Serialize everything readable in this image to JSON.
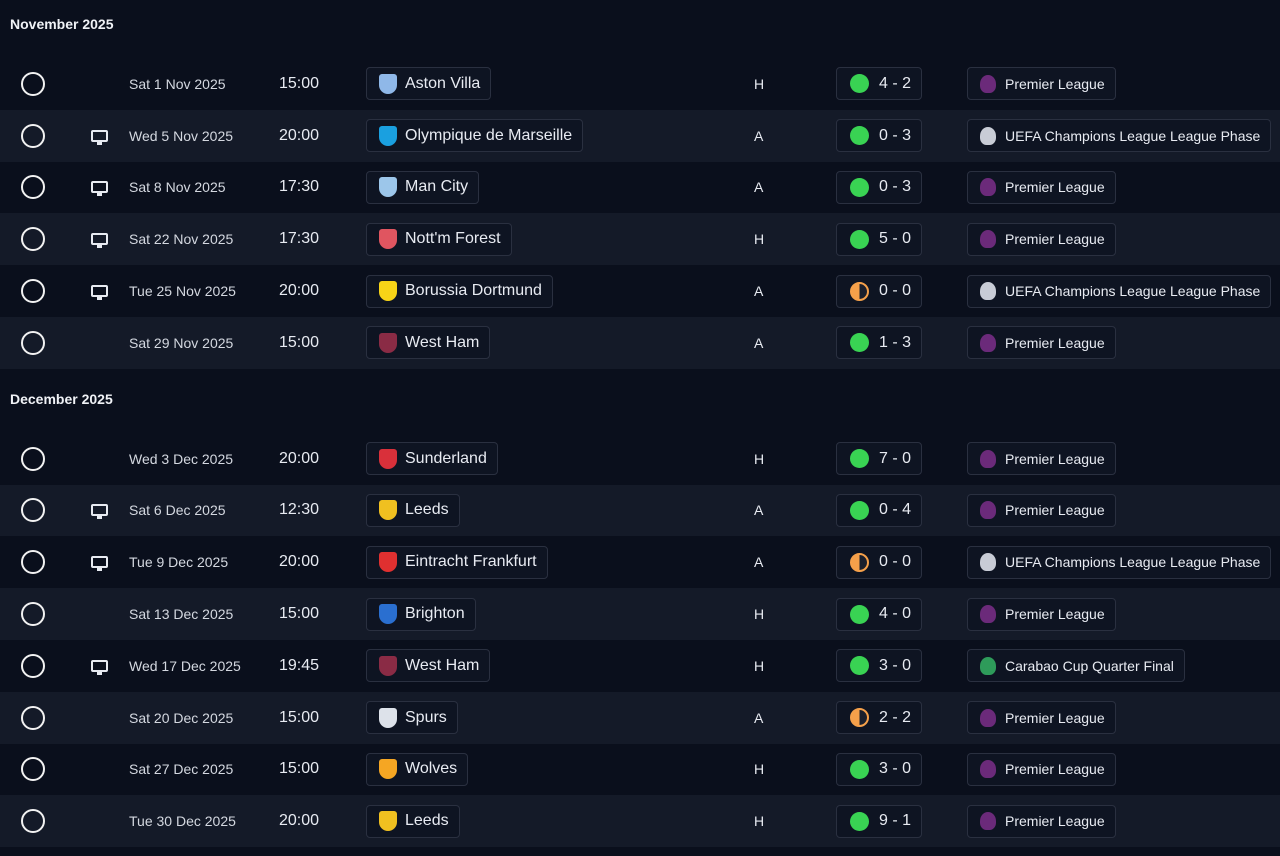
{
  "colors": {
    "win": "#39d353",
    "draw": "#f5a04a",
    "pl": "#6b2a7a",
    "ucl": "#c8ccd6",
    "cup": "#2e9b5a"
  },
  "months": [
    {
      "title": "November 2025",
      "fixtures": [
        {
          "date": "Sat 1 Nov 2025",
          "time": "15:00",
          "tv": false,
          "team": "Aston Villa",
          "crest": "#8fb8e8",
          "venue": "H",
          "result": "win",
          "score": "4 - 2",
          "comp": "Premier League",
          "ctype": "pl"
        },
        {
          "date": "Wed 5 Nov 2025",
          "time": "20:00",
          "tv": true,
          "team": "Olympique de Marseille",
          "crest": "#1aa0e0",
          "venue": "A",
          "result": "win",
          "score": "0 - 3",
          "comp": "UEFA Champions League League Phase",
          "ctype": "ucl"
        },
        {
          "date": "Sat 8 Nov 2025",
          "time": "17:30",
          "tv": true,
          "team": "Man City",
          "crest": "#9cc6ea",
          "venue": "A",
          "result": "win",
          "score": "0 - 3",
          "comp": "Premier League",
          "ctype": "pl"
        },
        {
          "date": "Sat 22 Nov 2025",
          "time": "17:30",
          "tv": true,
          "team": "Nott'm Forest",
          "crest": "#e05560",
          "venue": "H",
          "result": "win",
          "score": "5 - 0",
          "comp": "Premier League",
          "ctype": "pl"
        },
        {
          "date": "Tue 25 Nov 2025",
          "time": "20:00",
          "tv": true,
          "team": "Borussia Dortmund",
          "crest": "#f7d417",
          "venue": "A",
          "result": "draw",
          "score": "0 - 0",
          "comp": "UEFA Champions League League Phase",
          "ctype": "ucl"
        },
        {
          "date": "Sat 29 Nov 2025",
          "time": "15:00",
          "tv": false,
          "team": "West Ham",
          "crest": "#8a2b45",
          "venue": "A",
          "result": "win",
          "score": "1 - 3",
          "comp": "Premier League",
          "ctype": "pl"
        }
      ]
    },
    {
      "title": "December 2025",
      "fixtures": [
        {
          "date": "Wed 3 Dec 2025",
          "time": "20:00",
          "tv": false,
          "team": "Sunderland",
          "crest": "#d9303a",
          "venue": "H",
          "result": "win",
          "score": "7 - 0",
          "comp": "Premier League",
          "ctype": "pl"
        },
        {
          "date": "Sat 6 Dec 2025",
          "time": "12:30",
          "tv": true,
          "team": "Leeds",
          "crest": "#f0c020",
          "venue": "A",
          "result": "win",
          "score": "0 - 4",
          "comp": "Premier League",
          "ctype": "pl"
        },
        {
          "date": "Tue 9 Dec 2025",
          "time": "20:00",
          "tv": true,
          "team": "Eintracht Frankfurt",
          "crest": "#e03030",
          "venue": "A",
          "result": "draw",
          "score": "0 - 0",
          "comp": "UEFA Champions League League Phase",
          "ctype": "ucl"
        },
        {
          "date": "Sat 13 Dec 2025",
          "time": "15:00",
          "tv": false,
          "team": "Brighton",
          "crest": "#2a6fd0",
          "venue": "H",
          "result": "win",
          "score": "4 - 0",
          "comp": "Premier League",
          "ctype": "pl"
        },
        {
          "date": "Wed 17 Dec 2025",
          "time": "19:45",
          "tv": true,
          "team": "West Ham",
          "crest": "#8a2b45",
          "venue": "H",
          "result": "win",
          "score": "3 - 0",
          "comp": "Carabao Cup Quarter Final",
          "ctype": "cup"
        },
        {
          "date": "Sat 20 Dec 2025",
          "time": "15:00",
          "tv": false,
          "team": "Spurs",
          "crest": "#dde2ea",
          "venue": "A",
          "result": "draw",
          "score": "2 - 2",
          "comp": "Premier League",
          "ctype": "pl"
        },
        {
          "date": "Sat 27 Dec 2025",
          "time": "15:00",
          "tv": false,
          "team": "Wolves",
          "crest": "#f5a623",
          "venue": "H",
          "result": "win",
          "score": "3 - 0",
          "comp": "Premier League",
          "ctype": "pl"
        },
        {
          "date": "Tue 30 Dec 2025",
          "time": "20:00",
          "tv": false,
          "team": "Leeds",
          "crest": "#f0c020",
          "venue": "H",
          "result": "win",
          "score": "9 - 1",
          "comp": "Premier League",
          "ctype": "pl"
        }
      ]
    }
  ]
}
